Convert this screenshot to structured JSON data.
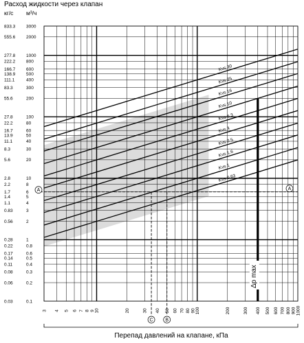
{
  "chart_data": {
    "type": "line",
    "title": "Расход жидкости через клапан",
    "xlabel": "Перепад давлений на клапане, кПа",
    "units": {
      "left": "кг/с",
      "right": "м³/ч"
    },
    "xscale": "log",
    "yscale": "log",
    "xlim": [
      3,
      1000
    ],
    "ylim": [
      0.1,
      3000
    ],
    "grid": true,
    "x_ticks": [
      "3",
      "4",
      "5",
      "6",
      "7",
      "8",
      "9",
      "10",
      "20",
      "30",
      "40",
      "50",
      "60",
      "70",
      "80",
      "90",
      "100",
      "200",
      "300",
      "400",
      "500",
      "600",
      "700",
      "800",
      "900",
      "1000"
    ],
    "y_ticks_m3h": [
      "0.1",
      "0.2",
      "0.3",
      "0.4",
      "0.5",
      "0.6",
      "0.8",
      "1",
      "2",
      "3",
      "4",
      "5",
      "6",
      "8",
      "10",
      "20",
      "30",
      "40",
      "50",
      "60",
      "80",
      "100",
      "200",
      "300",
      "400",
      "500",
      "600",
      "800",
      "1000",
      "2000",
      "3000"
    ],
    "y_ticks_kgs": [
      "0.03",
      "0.06",
      "0.08",
      "0.11",
      "0.14",
      "0.17",
      "0.22",
      "0.28",
      "0.56",
      "0.83",
      "1.1",
      "1.4",
      "1.7",
      "2.2",
      "2.8",
      "5.6",
      "8.3",
      "11.1",
      "13.9",
      "16.7",
      "22.2",
      "27.8",
      "55.6",
      "83.3",
      "111.1",
      "138.9",
      "166.7",
      "222.2",
      "277.8",
      "555.6",
      "833.3"
    ],
    "series": [
      {
        "name": "Kvs 40",
        "kvs": 40
      },
      {
        "name": "Kvs 25",
        "kvs": 25
      },
      {
        "name": "Kvs 16",
        "kvs": 16
      },
      {
        "name": "Kvs 10",
        "kvs": 10
      },
      {
        "name": "Kvs 6.3",
        "kvs": 6.3
      },
      {
        "name": "Kvs 4",
        "kvs": 4
      },
      {
        "name": "Kvs 2.5",
        "kvs": 2.5
      },
      {
        "name": "Kvs 1.6",
        "kvs": 1.6
      },
      {
        "name": "Kvs 1",
        "kvs": 1
      },
      {
        "name": "Kvs 0.63",
        "kvs": 0.63
      }
    ],
    "shaded_band": {
      "x": [
        3,
        130
      ],
      "y_low_factor": 0.35,
      "y_high_factor": 0.35
    },
    "dp_max": {
      "label": "Δp max",
      "x": 400,
      "y_range": [
        0.1,
        200
      ]
    },
    "annotations": [
      {
        "label": "A",
        "x_from": 3,
        "x_to": 1000,
        "y": 6
      },
      {
        "label": "B",
        "x": 50,
        "y_top": 6
      },
      {
        "label": "C",
        "x": 35,
        "y_top": 6
      }
    ]
  }
}
